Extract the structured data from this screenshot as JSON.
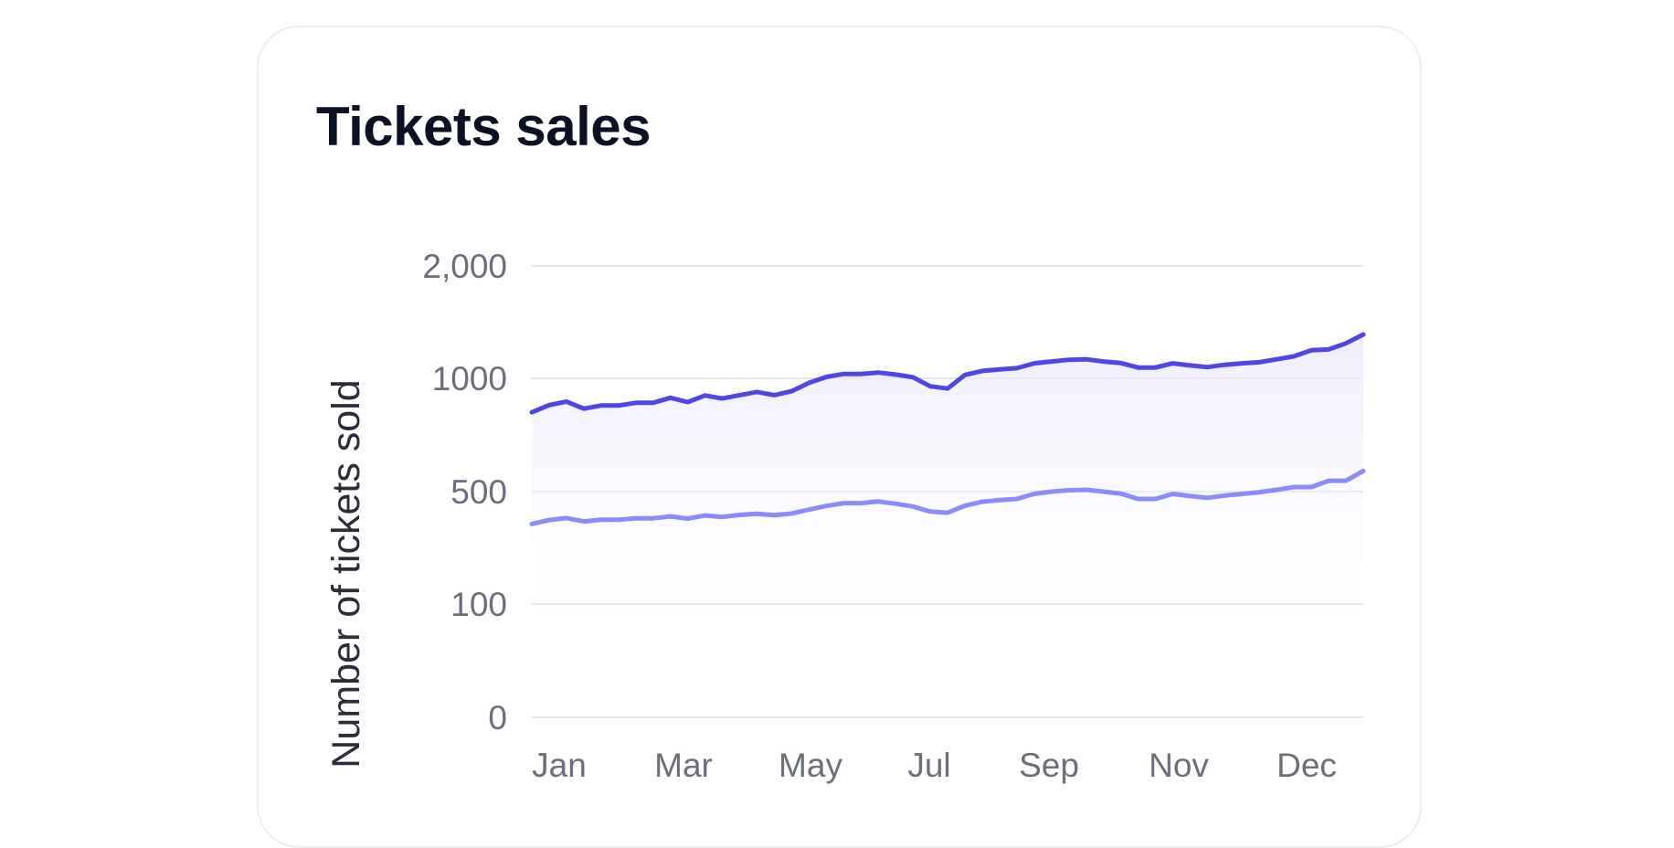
{
  "card": {
    "title": "Tickets sales"
  },
  "colors": {
    "primary_line": "#4f46e5",
    "secondary_line": "#8b8cf8",
    "area_fill": "#eceafc",
    "grid": "#e3e4ee"
  },
  "chart_data": {
    "type": "line",
    "title": "Tickets sales",
    "xlabel": "",
    "ylabel": "Number of tickets sold",
    "y_ticks": [
      "0",
      "100",
      "500",
      "1000",
      "2,000"
    ],
    "x_ticks": [
      "Jan",
      "Mar",
      "May",
      "Jul",
      "Sep",
      "Nov",
      "Dec"
    ],
    "grid": true,
    "legend": "none",
    "series": [
      {
        "values": [
          850,
          882,
          897,
          866,
          880,
          880,
          892,
          892,
          914,
          895,
          924,
          911,
          926,
          940,
          926,
          943,
          980,
          1012,
          1039,
          1039,
          1051,
          1033,
          1010,
          965,
          955,
          1030,
          1066,
          1080,
          1090,
          1133,
          1150,
          1165,
          1169,
          1150,
          1136,
          1096,
          1096,
          1133,
          1115,
          1100,
          1120,
          1133,
          1143,
          1169,
          1196,
          1250,
          1257,
          1311,
          1390
        ]
      },
      {
        "values": [
          385,
          399,
          406,
          394,
          400,
          400,
          405,
          405,
          412,
          404,
          415,
          410,
          417,
          421,
          416,
          422,
          436,
          449,
          459,
          459,
          465,
          457,
          447,
          429,
          425,
          450,
          464,
          470,
          474,
          492,
          500,
          506,
          508,
          500,
          493,
          474,
          474,
          492,
          484,
          478,
          486,
          492,
          498,
          508,
          520,
          520,
          548,
          548,
          591
        ]
      }
    ]
  }
}
